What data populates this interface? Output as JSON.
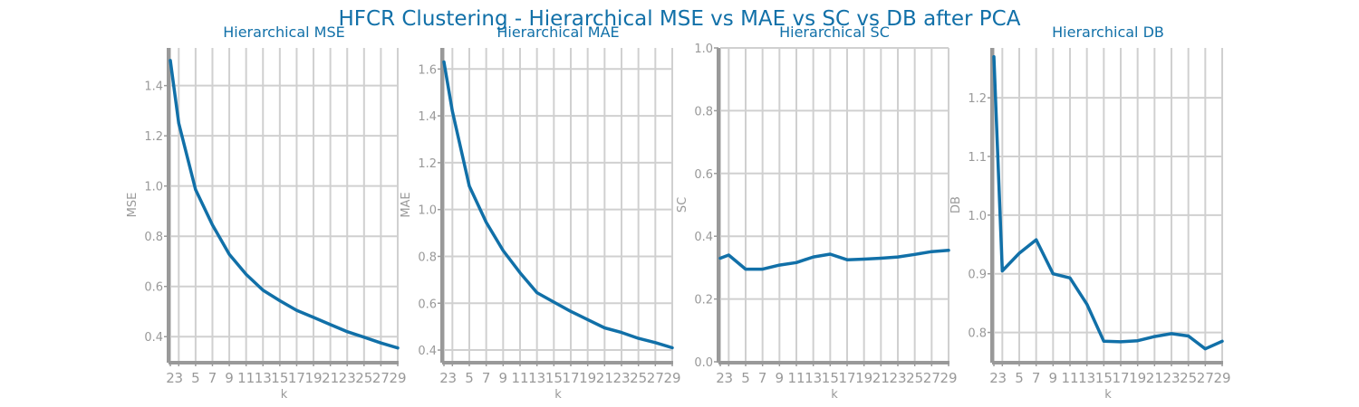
{
  "figure": {
    "title": "HFCR Clustering - Hierarchical MSE vs MAE vs SC vs DB after PCA"
  },
  "colors": {
    "line": "#1170a8",
    "title": "#1170a8",
    "grid": "#d0d0d0",
    "axis": "#999999",
    "text": "#999999"
  },
  "chart_data": [
    {
      "type": "line",
      "title": "Hierarchical MSE",
      "xlabel": "k",
      "ylabel": "MSE",
      "x": [
        2,
        3,
        5,
        7,
        9,
        11,
        13,
        15,
        17,
        19,
        21,
        23,
        25,
        27,
        29
      ],
      "xticks": [
        2,
        3,
        5,
        7,
        9,
        11,
        13,
        15,
        17,
        19,
        21,
        23,
        25,
        27,
        29
      ],
      "y": [
        1.5,
        1.25,
        0.985,
        0.845,
        0.728,
        0.648,
        0.585,
        0.543,
        0.505,
        0.477,
        0.448,
        0.42,
        0.398,
        0.375,
        0.355
      ],
      "xlim": [
        2,
        29
      ],
      "ylim": [
        0.3,
        1.55
      ],
      "yticks": [
        0.4,
        0.6,
        0.8,
        1.0,
        1.2,
        1.4
      ],
      "ytick_labels": [
        "0.4",
        "0.6",
        "0.8",
        "1.0",
        "1.2",
        "1.4"
      ],
      "grid": true
    },
    {
      "type": "line",
      "title": "Hierarchical MAE",
      "xlabel": "k",
      "ylabel": "MAE",
      "x": [
        2,
        3,
        5,
        7,
        9,
        11,
        13,
        15,
        17,
        19,
        21,
        23,
        25,
        27,
        29
      ],
      "xticks": [
        2,
        3,
        5,
        7,
        9,
        11,
        13,
        15,
        17,
        19,
        21,
        23,
        25,
        27,
        29
      ],
      "y": [
        1.63,
        1.42,
        1.1,
        0.945,
        0.825,
        0.73,
        0.645,
        0.605,
        0.565,
        0.53,
        0.495,
        0.475,
        0.45,
        0.432,
        0.41
      ],
      "xlim": [
        2,
        29
      ],
      "ylim": [
        0.35,
        1.69
      ],
      "yticks": [
        0.4,
        0.6,
        0.8,
        1.0,
        1.2,
        1.4,
        1.6
      ],
      "ytick_labels": [
        "0.4",
        "0.6",
        "0.8",
        "1.0",
        "1.2",
        "1.4",
        "1.6"
      ],
      "grid": true
    },
    {
      "type": "line",
      "title": "Hierarchical SC",
      "xlabel": "k",
      "ylabel": "SC",
      "x": [
        2,
        3,
        5,
        7,
        9,
        11,
        13,
        15,
        17,
        19,
        21,
        23,
        25,
        27,
        29
      ],
      "xticks": [
        2,
        3,
        5,
        7,
        9,
        11,
        13,
        15,
        17,
        19,
        21,
        23,
        25,
        27,
        29
      ],
      "y": [
        0.33,
        0.34,
        0.295,
        0.295,
        0.308,
        0.316,
        0.334,
        0.343,
        0.325,
        0.327,
        0.33,
        0.334,
        0.342,
        0.351,
        0.355
      ],
      "xlim": [
        2,
        29
      ],
      "ylim": [
        0,
        1
      ],
      "yticks": [
        0.0,
        0.2,
        0.4,
        0.6,
        0.8,
        1.0
      ],
      "ytick_labels": [
        "0.0",
        "0.2",
        "0.4",
        "0.6",
        "0.8",
        "1.0"
      ],
      "grid": true
    },
    {
      "type": "line",
      "title": "Hierarchical DB",
      "xlabel": "k",
      "ylabel": "DB",
      "x": [
        2,
        3,
        5,
        7,
        9,
        11,
        13,
        15,
        17,
        19,
        21,
        23,
        25,
        27,
        29
      ],
      "xticks": [
        2,
        3,
        5,
        7,
        9,
        11,
        13,
        15,
        17,
        19,
        21,
        23,
        25,
        27,
        29
      ],
      "y": [
        1.27,
        0.905,
        0.935,
        0.958,
        0.9,
        0.893,
        0.848,
        0.785,
        0.784,
        0.786,
        0.793,
        0.798,
        0.794,
        0.772,
        0.785
      ],
      "xlim": [
        2,
        29
      ],
      "ylim": [
        0.75,
        1.285
      ],
      "yticks": [
        0.8,
        0.9,
        1.0,
        1.1,
        1.2
      ],
      "ytick_labels": [
        "0.8",
        "0.9",
        "1.0",
        "1.1",
        "1.2"
      ],
      "grid": true
    }
  ]
}
